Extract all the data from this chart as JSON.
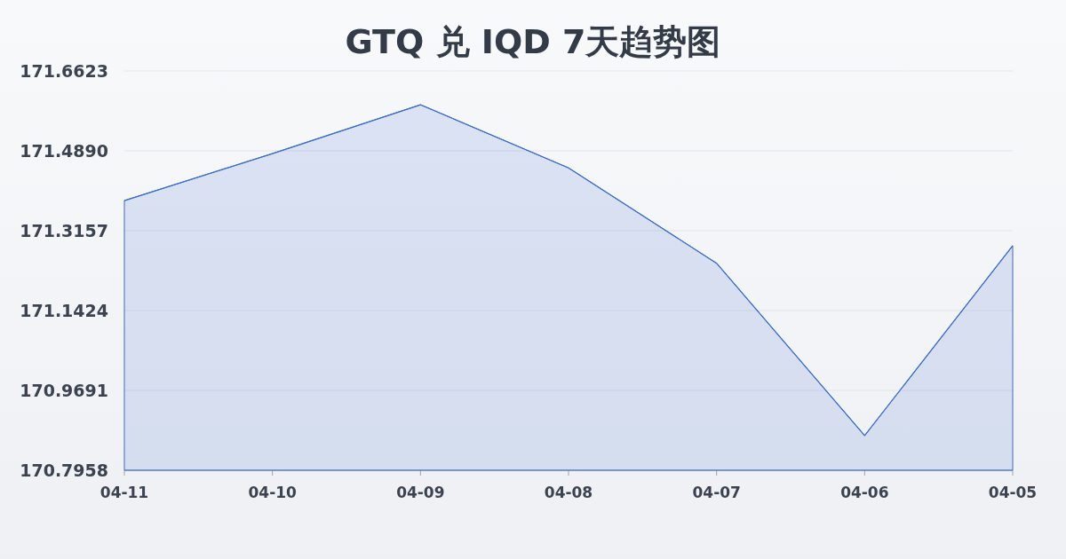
{
  "chart_data": {
    "type": "area",
    "title": "GTQ 兑 IQD 7天趋势图",
    "categories": [
      "04-11",
      "04-10",
      "04-09",
      "04-08",
      "04-07",
      "04-06",
      "04-05"
    ],
    "series": [
      {
        "color": "#3a6bd0",
        "values": [
          171.381,
          171.483,
          171.589,
          171.452,
          171.245,
          170.871,
          171.283
        ]
      }
    ],
    "ylim": [
      170.7958,
      171.6623
    ],
    "yticks": [
      {
        "value": 170.7958,
        "label": "170.7958"
      },
      {
        "value": 170.9691,
        "label": "170.9691"
      },
      {
        "value": 171.1424,
        "label": "171.1424"
      },
      {
        "value": 171.3157,
        "label": "171.3157"
      },
      {
        "value": 171.489,
        "label": "171.4890"
      },
      {
        "value": 171.6623,
        "label": "171.6623"
      }
    ],
    "grid": "y",
    "marker": "none"
  }
}
